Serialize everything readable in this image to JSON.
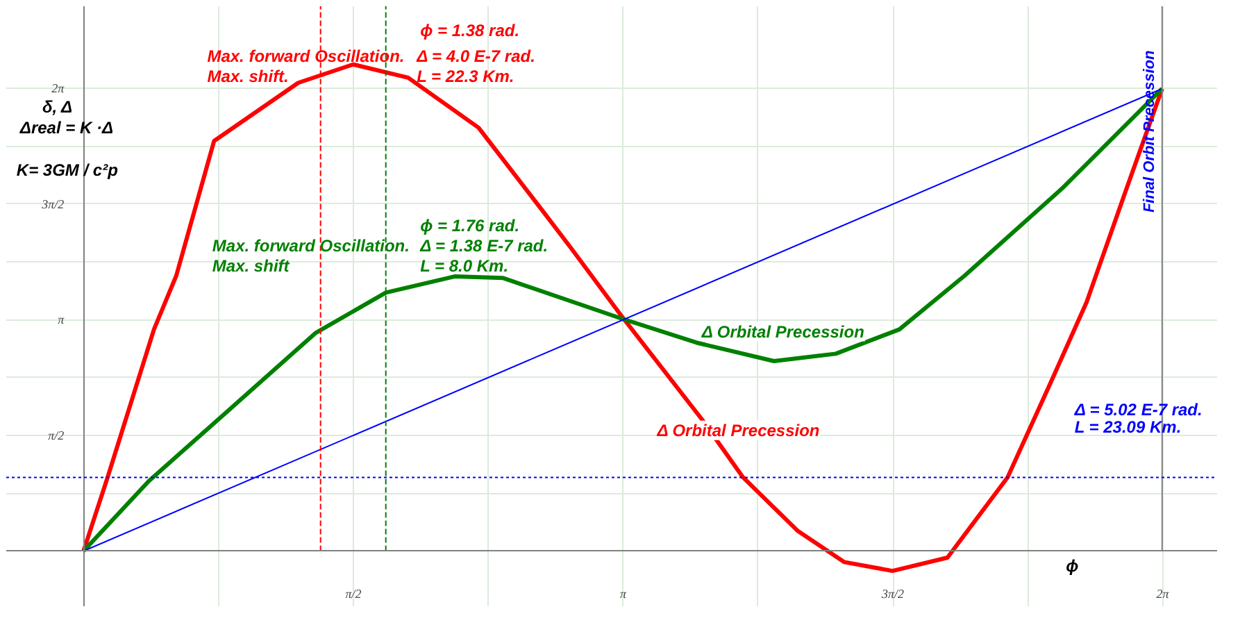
{
  "chart_data": {
    "type": "line",
    "xlim": [
      -0.45,
      6.6
    ],
    "ylim": [
      -0.75,
      7.4
    ],
    "xticks": [
      {
        "value": 0.7854,
        "label": null
      },
      {
        "value": 1.5708,
        "label": "π/2"
      },
      {
        "value": 2.3562,
        "label": null
      },
      {
        "value": 3.1416,
        "label": "π"
      },
      {
        "value": 3.927,
        "label": null
      },
      {
        "value": 4.7124,
        "label": "3π/2"
      },
      {
        "value": 5.4978,
        "label": null
      },
      {
        "value": 6.2832,
        "label": "2π"
      }
    ],
    "yticks": [
      {
        "value": 0.7854,
        "label": null
      },
      {
        "value": 1.5708,
        "label": "π/2"
      },
      {
        "value": 2.3562,
        "label": null
      },
      {
        "value": 3.1416,
        "label": "π"
      },
      {
        "value": 3.927,
        "label": null
      },
      {
        "value": 4.7124,
        "label": "3π/2"
      },
      {
        "value": 5.4978,
        "label": null
      },
      {
        "value": 6.2832,
        "label": "2π"
      }
    ],
    "grid": true,
    "marker": "none",
    "line_style": "solid",
    "series": [
      {
        "color": "#ff0000",
        "x": [
          0,
          0.14,
          0.41,
          0.54,
          0.76,
          1.25,
          1.57,
          1.89,
          2.3,
          2.68,
          2.84,
          3.13,
          3.6,
          3.84,
          4.16,
          4.43,
          4.71,
          5.03,
          5.38,
          5.62,
          5.84,
          6.06,
          6.28
        ],
        "values": [
          0,
          1.0,
          3.01,
          3.74,
          5.57,
          6.36,
          6.61,
          6.43,
          5.75,
          4.6,
          4.11,
          3.2,
          1.79,
          1.0,
          0.27,
          -0.15,
          -0.27,
          -0.09,
          1.0,
          2.23,
          3.38,
          4.84,
          6.28
        ]
      },
      {
        "color": "#008000",
        "x": [
          0,
          0.38,
          0.82,
          1.35,
          1.76,
          2.16,
          2.44,
          3.13,
          3.57,
          4.02,
          4.38,
          4.75,
          5.13,
          5.7,
          6.28
        ],
        "values": [
          0,
          0.95,
          1.86,
          2.96,
          3.51,
          3.73,
          3.71,
          3.16,
          2.83,
          2.58,
          2.68,
          3.01,
          3.74,
          4.93,
          6.28
        ]
      },
      {
        "color": "#0000ff",
        "x": [
          0,
          6.28
        ],
        "values": [
          0,
          6.28
        ]
      }
    ],
    "ref_lines": [
      {
        "axis": "y",
        "value": 1.0,
        "color": "#0000ff",
        "line_style": "dotted"
      },
      {
        "axis": "x",
        "value": 1.38,
        "color": "#ff0000",
        "line_style": "dashed"
      },
      {
        "axis": "x",
        "value": 1.76,
        "color": "#008000",
        "line_style": "dashed"
      },
      {
        "axis": "x",
        "value": 6.28,
        "color": "#808080",
        "line_style": "solid",
        "label": "Final Orbit Precession"
      }
    ],
    "annotations": [
      "ϕ = 1.38 rad.",
      "Max. forward Oscillation.",
      "Δ = 4.0 E-7  rad.",
      "Max.  shift.",
      "L =   22.3  Km.",
      "ϕ = 1.76 rad.",
      "Max. forward Oscillation.",
      "Δ = 1.38 E-7 rad.",
      "Max.  shift",
      "L = 8.0 Km.",
      "Δ Orbital Precession",
      "Δ Orbital Precession",
      "Δ = 5.02 E-7  rad.",
      "L =  23.09   Km.",
      "δ, Δ",
      "Δreal = K ·Δ",
      "K= 3GM / c²p",
      "ϕ"
    ]
  }
}
